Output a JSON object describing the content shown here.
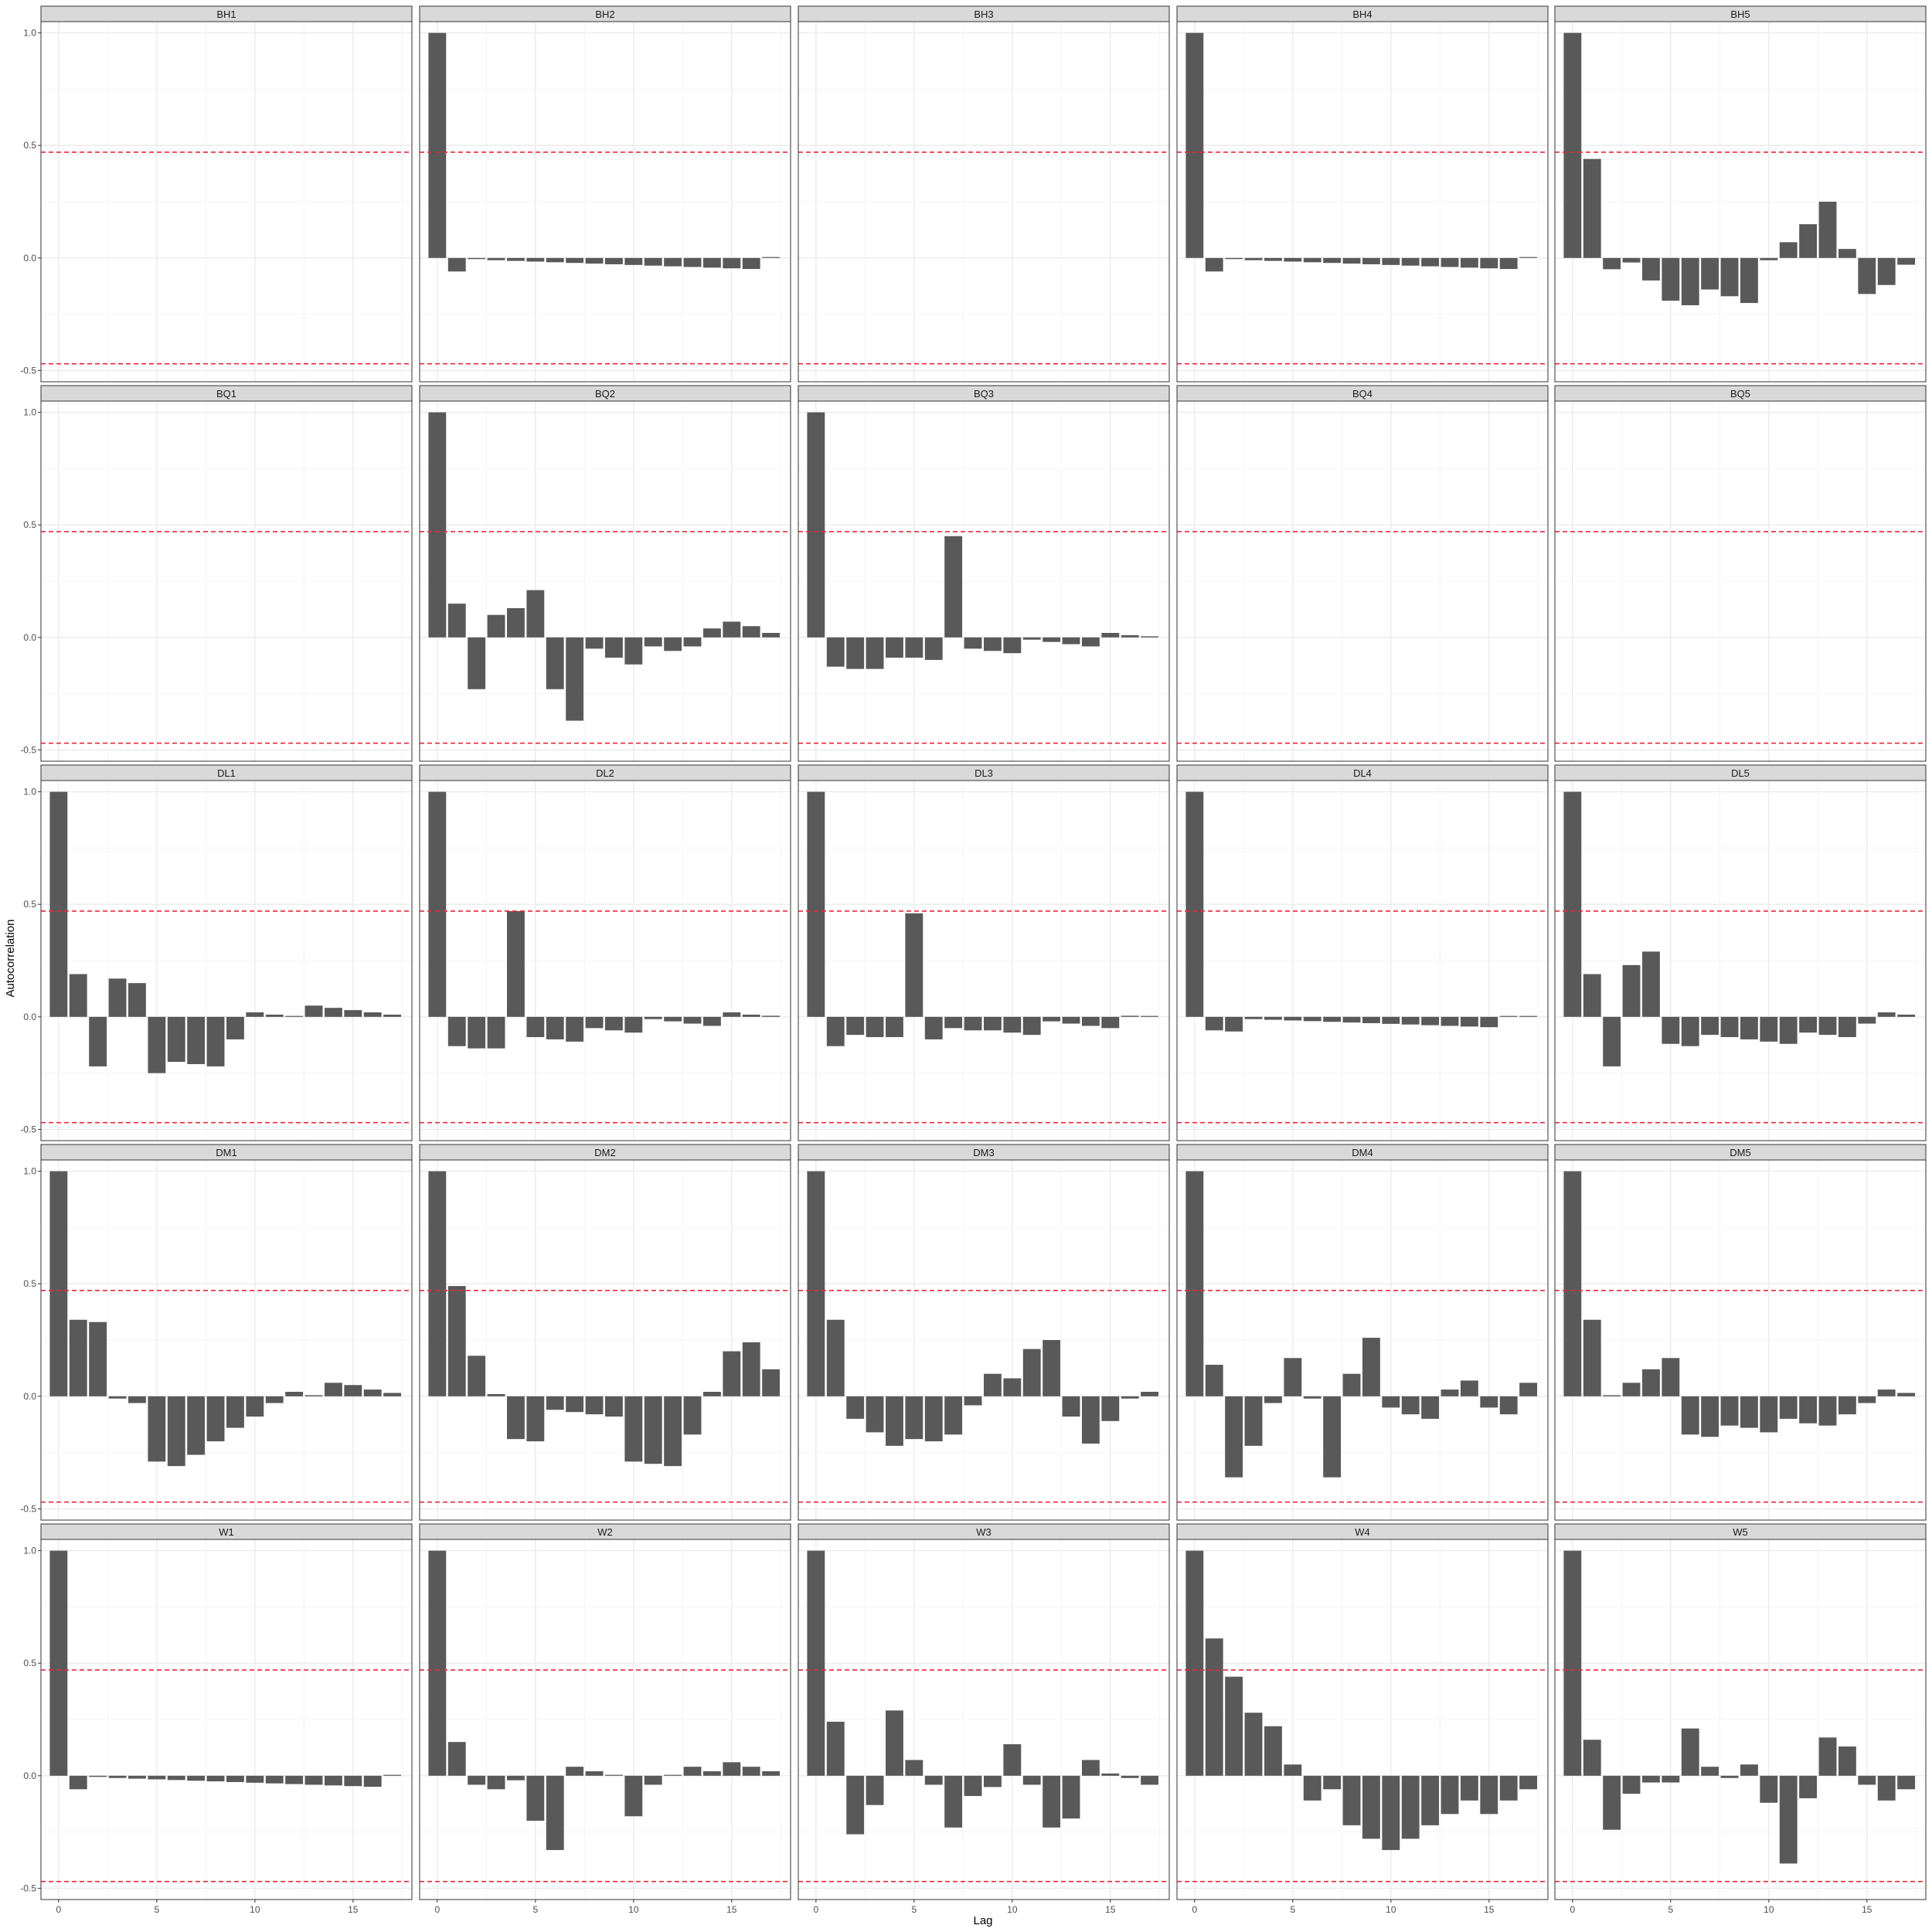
{
  "chart_data": {
    "type": "bar",
    "xlabel": "Lag",
    "ylabel": "Autocorrelation",
    "xlim": [
      -0.9,
      18
    ],
    "ylim": [
      -0.55,
      1.05
    ],
    "x_ticks": [
      0,
      5,
      10,
      15
    ],
    "y_ticks": [
      -0.5,
      0.0,
      0.5,
      1.0
    ],
    "y_tick_labels": [
      "-0.5",
      "0.0",
      "0.5",
      "1.0"
    ],
    "confidence_bound": 0.47,
    "grid": true,
    "colors": {
      "bar": "#595959",
      "bound_line": "#e8283c",
      "strip_bg": "#d9d9d9",
      "panel_border": "#333333",
      "grid_major": "#ebebeb",
      "grid_minor": "#f5f5f5"
    },
    "lags": [
      0,
      1,
      2,
      3,
      4,
      5,
      6,
      7,
      8,
      9,
      10,
      11,
      12,
      13,
      14,
      15,
      16,
      17
    ],
    "panels": [
      {
        "name": "BH1",
        "values": []
      },
      {
        "name": "BH2",
        "values": [
          1.0,
          -0.06,
          -0.005,
          -0.01,
          -0.013,
          -0.016,
          -0.019,
          -0.022,
          -0.025,
          -0.028,
          -0.031,
          -0.034,
          -0.037,
          -0.04,
          -0.043,
          -0.046,
          -0.049,
          0.002
        ]
      },
      {
        "name": "BH3",
        "values": []
      },
      {
        "name": "BH4",
        "values": [
          1.0,
          -0.06,
          -0.005,
          -0.01,
          -0.013,
          -0.016,
          -0.019,
          -0.022,
          -0.025,
          -0.028,
          -0.031,
          -0.034,
          -0.037,
          -0.04,
          -0.043,
          -0.046,
          -0.049,
          0.002
        ]
      },
      {
        "name": "BH5",
        "values": [
          1.0,
          0.44,
          -0.05,
          -0.02,
          -0.1,
          -0.19,
          -0.21,
          -0.14,
          -0.17,
          -0.2,
          -0.01,
          0.07,
          0.15,
          0.25,
          0.04,
          -0.16,
          -0.12,
          -0.03
        ]
      },
      {
        "name": "BQ1",
        "values": []
      },
      {
        "name": "BQ2",
        "values": [
          1.0,
          0.15,
          -0.23,
          0.1,
          0.13,
          0.21,
          -0.23,
          -0.37,
          -0.05,
          -0.09,
          -0.12,
          -0.04,
          -0.06,
          -0.04,
          0.04,
          0.07,
          0.05,
          0.02
        ]
      },
      {
        "name": "BQ3",
        "values": [
          1.0,
          -0.13,
          -0.14,
          -0.14,
          -0.09,
          -0.09,
          -0.1,
          0.45,
          -0.05,
          -0.06,
          -0.07,
          -0.01,
          -0.02,
          -0.03,
          -0.04,
          0.02,
          0.01,
          0.005
        ]
      },
      {
        "name": "BQ4",
        "values": []
      },
      {
        "name": "BQ5",
        "values": []
      },
      {
        "name": "DL1",
        "values": [
          1.0,
          0.19,
          -0.22,
          0.17,
          0.15,
          -0.25,
          -0.2,
          -0.21,
          -0.22,
          -0.1,
          0.02,
          0.01,
          0.0,
          0.05,
          0.04,
          0.03,
          0.02,
          0.01
        ]
      },
      {
        "name": "DL2",
        "values": [
          1.0,
          -0.13,
          -0.14,
          -0.14,
          0.47,
          -0.09,
          -0.1,
          -0.11,
          -0.05,
          -0.06,
          -0.07,
          -0.01,
          -0.02,
          -0.03,
          -0.04,
          0.02,
          0.01,
          0.005
        ]
      },
      {
        "name": "DL3",
        "values": [
          1.0,
          -0.13,
          -0.08,
          -0.09,
          -0.09,
          0.46,
          -0.1,
          -0.05,
          -0.06,
          -0.06,
          -0.07,
          -0.08,
          -0.02,
          -0.03,
          -0.04,
          -0.05,
          0.005,
          0.0
        ]
      },
      {
        "name": "DL4",
        "values": [
          1.0,
          -0.06,
          -0.065,
          -0.01,
          -0.013,
          -0.016,
          -0.019,
          -0.022,
          -0.025,
          -0.028,
          -0.031,
          -0.034,
          -0.037,
          -0.04,
          -0.043,
          -0.046,
          0.004,
          0.002
        ]
      },
      {
        "name": "DL5",
        "values": [
          1.0,
          0.19,
          -0.22,
          0.23,
          0.29,
          -0.12,
          -0.13,
          -0.08,
          -0.09,
          -0.1,
          -0.11,
          -0.12,
          -0.07,
          -0.08,
          -0.09,
          -0.03,
          0.02,
          0.01
        ]
      },
      {
        "name": "DM1",
        "values": [
          1.0,
          0.34,
          0.33,
          -0.01,
          -0.03,
          -0.29,
          -0.31,
          -0.26,
          -0.2,
          -0.14,
          -0.09,
          -0.03,
          0.02,
          0.005,
          0.06,
          0.05,
          0.03,
          0.015
        ]
      },
      {
        "name": "DM2",
        "values": [
          1.0,
          0.49,
          0.18,
          0.01,
          -0.19,
          -0.2,
          -0.06,
          -0.07,
          -0.08,
          -0.09,
          -0.29,
          -0.3,
          -0.31,
          -0.17,
          0.02,
          0.2,
          0.24,
          0.12
        ]
      },
      {
        "name": "DM3",
        "values": [
          1.0,
          0.34,
          -0.1,
          -0.16,
          -0.22,
          -0.19,
          -0.2,
          -0.17,
          -0.04,
          0.1,
          0.08,
          0.21,
          0.25,
          -0.09,
          -0.21,
          -0.11,
          -0.01,
          0.02
        ]
      },
      {
        "name": "DM4",
        "values": [
          1.0,
          0.14,
          -0.36,
          -0.22,
          -0.03,
          0.17,
          -0.01,
          -0.36,
          0.1,
          0.26,
          -0.05,
          -0.08,
          -0.1,
          0.03,
          0.07,
          -0.05,
          -0.08,
          0.06
        ]
      },
      {
        "name": "DM5",
        "values": [
          1.0,
          0.34,
          0.005,
          0.06,
          0.12,
          0.17,
          -0.17,
          -0.18,
          -0.13,
          -0.14,
          -0.16,
          -0.1,
          -0.12,
          -0.13,
          -0.08,
          -0.03,
          0.03,
          0.015
        ]
      },
      {
        "name": "W1",
        "values": [
          1.0,
          -0.06,
          -0.005,
          -0.01,
          -0.013,
          -0.016,
          -0.019,
          -0.022,
          -0.025,
          -0.028,
          -0.031,
          -0.034,
          -0.037,
          -0.04,
          -0.043,
          -0.046,
          -0.049,
          0.002
        ]
      },
      {
        "name": "W2",
        "values": [
          1.0,
          0.15,
          -0.04,
          -0.06,
          -0.02,
          -0.2,
          -0.33,
          0.04,
          0.02,
          0.0,
          -0.18,
          -0.04,
          0.0,
          0.04,
          0.02,
          0.06,
          0.04,
          0.02
        ]
      },
      {
        "name": "W3",
        "values": [
          1.0,
          0.24,
          -0.26,
          -0.13,
          0.29,
          0.07,
          -0.04,
          -0.23,
          -0.09,
          -0.05,
          0.14,
          -0.04,
          -0.23,
          -0.19,
          0.07,
          0.01,
          -0.01,
          -0.04
        ]
      },
      {
        "name": "W4",
        "values": [
          1.0,
          0.61,
          0.44,
          0.28,
          0.22,
          0.05,
          -0.11,
          -0.06,
          -0.22,
          -0.28,
          -0.33,
          -0.28,
          -0.22,
          -0.17,
          -0.11,
          -0.17,
          -0.11,
          -0.06
        ]
      },
      {
        "name": "W5",
        "values": [
          1.0,
          0.16,
          -0.24,
          -0.08,
          -0.03,
          -0.03,
          0.21,
          0.04,
          -0.01,
          0.05,
          -0.12,
          -0.39,
          -0.1,
          0.17,
          0.13,
          -0.04,
          -0.11,
          -0.06
        ]
      }
    ]
  }
}
